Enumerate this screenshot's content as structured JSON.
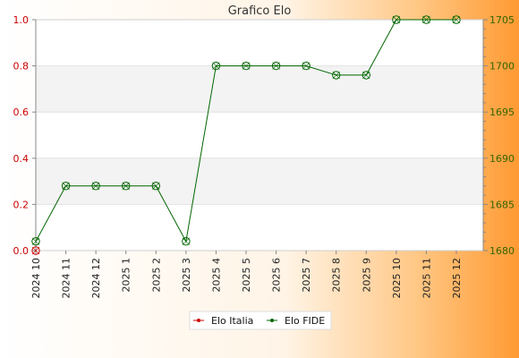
{
  "chart_data": {
    "type": "line",
    "title": "Grafico Elo",
    "categories": [
      "2024 10",
      "2024 11",
      "2024 12",
      "2025 1",
      "2025 2",
      "2025 3",
      "2025 4",
      "2025 5",
      "2025 6",
      "2025 7",
      "2025 8",
      "2025 9",
      "2025 10",
      "2025 11",
      "2025 12"
    ],
    "series": [
      {
        "name": "Elo Italia",
        "axis": "left",
        "color": "#cc0000",
        "values": [
          0,
          null,
          null,
          null,
          null,
          null,
          null,
          null,
          null,
          null,
          null,
          null,
          null,
          null,
          null
        ]
      },
      {
        "name": "Elo FIDE",
        "axis": "right",
        "color": "#006600",
        "values": [
          1681,
          1687,
          1687,
          1687,
          1687,
          1681,
          1700,
          1700,
          1700,
          1700,
          1699,
          1699,
          1705,
          1705,
          1705
        ]
      }
    ],
    "y_left": {
      "range": [
        0,
        1
      ],
      "ticks": [
        "0.0",
        "0.2",
        "0.4",
        "0.6",
        "0.8",
        "1.0"
      ],
      "color": "#cc0000"
    },
    "y_right": {
      "range": [
        1680,
        1705
      ],
      "ticks": [
        "1680",
        "1685",
        "1690",
        "1695",
        "1700",
        "1705"
      ],
      "color": "#336600"
    },
    "xlabel": "",
    "ylabel": "",
    "grid": true,
    "legend_position": "bottom-center"
  }
}
